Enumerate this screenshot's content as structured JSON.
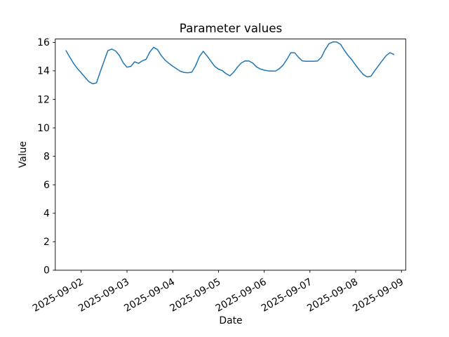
{
  "figure": {
    "background": "#ffffff",
    "text_color": "#000000",
    "axes_color": "#000000"
  },
  "chart_data": {
    "type": "line",
    "title": "Parameter values",
    "xlabel": "Date",
    "ylabel": "Value",
    "grid": false,
    "legend": null,
    "ylim": [
      0,
      16.24
    ],
    "yticks": [
      0,
      2,
      4,
      6,
      8,
      10,
      12,
      14,
      16
    ],
    "x_tick_labels": [
      "2025-09-02",
      "2025-09-03",
      "2025-09-04",
      "2025-09-05",
      "2025-09-06",
      "2025-09-07",
      "2025-09-08",
      "2025-09-09"
    ],
    "series": [
      {
        "color": "#1f77b4",
        "line_width": 1.5,
        "x": [
          "2025-09-01 16:00",
          "2025-09-01 18:00",
          "2025-09-01 20:00",
          "2025-09-01 22:00",
          "2025-09-02 00:00",
          "2025-09-02 02:00",
          "2025-09-02 04:00",
          "2025-09-02 06:00",
          "2025-09-02 08:00",
          "2025-09-02 10:00",
          "2025-09-02 12:00",
          "2025-09-02 14:00",
          "2025-09-02 16:00",
          "2025-09-02 18:00",
          "2025-09-02 20:00",
          "2025-09-02 22:00",
          "2025-09-03 00:00",
          "2025-09-03 02:00",
          "2025-09-03 04:00",
          "2025-09-03 06:00",
          "2025-09-03 08:00",
          "2025-09-03 10:00",
          "2025-09-03 12:00",
          "2025-09-03 14:00",
          "2025-09-03 16:00",
          "2025-09-03 18:00",
          "2025-09-03 20:00",
          "2025-09-03 22:00",
          "2025-09-04 00:00",
          "2025-09-04 02:00",
          "2025-09-04 04:00",
          "2025-09-04 06:00",
          "2025-09-04 08:00",
          "2025-09-04 10:00",
          "2025-09-04 12:00",
          "2025-09-04 14:00",
          "2025-09-04 16:00",
          "2025-09-04 18:00",
          "2025-09-04 20:00",
          "2025-09-04 22:00",
          "2025-09-05 00:00",
          "2025-09-05 02:00",
          "2025-09-05 04:00",
          "2025-09-05 06:00",
          "2025-09-05 08:00",
          "2025-09-05 10:00",
          "2025-09-05 12:00",
          "2025-09-05 14:00",
          "2025-09-05 16:00",
          "2025-09-05 18:00",
          "2025-09-05 20:00",
          "2025-09-05 22:00",
          "2025-09-06 00:00",
          "2025-09-06 02:00",
          "2025-09-06 04:00",
          "2025-09-06 06:00",
          "2025-09-06 08:00",
          "2025-09-06 10:00",
          "2025-09-06 12:00",
          "2025-09-06 14:00",
          "2025-09-06 16:00",
          "2025-09-06 18:00",
          "2025-09-06 20:00",
          "2025-09-06 22:00",
          "2025-09-07 00:00",
          "2025-09-07 02:00",
          "2025-09-07 04:00",
          "2025-09-07 06:00",
          "2025-09-07 08:00",
          "2025-09-07 10:00",
          "2025-09-07 12:00",
          "2025-09-07 14:00",
          "2025-09-07 16:00",
          "2025-09-07 18:00",
          "2025-09-07 20:00",
          "2025-09-07 22:00",
          "2025-09-08 00:00",
          "2025-09-08 02:00",
          "2025-09-08 04:00",
          "2025-09-08 06:00",
          "2025-09-08 08:00",
          "2025-09-08 10:00",
          "2025-09-08 12:00",
          "2025-09-08 14:00",
          "2025-09-08 16:00",
          "2025-09-08 18:00",
          "2025-09-08 20:00"
        ],
        "values": [
          15.42,
          14.96,
          14.52,
          14.16,
          13.86,
          13.55,
          13.24,
          13.09,
          13.16,
          13.95,
          14.69,
          15.42,
          15.53,
          15.4,
          15.08,
          14.57,
          14.26,
          14.31,
          14.64,
          14.53,
          14.7,
          14.81,
          15.33,
          15.66,
          15.49,
          15.07,
          14.75,
          14.53,
          14.32,
          14.15,
          13.97,
          13.89,
          13.87,
          13.91,
          14.36,
          15.0,
          15.37,
          15.05,
          14.68,
          14.32,
          14.12,
          14.02,
          13.8,
          13.65,
          13.91,
          14.27,
          14.56,
          14.7,
          14.69,
          14.55,
          14.28,
          14.13,
          14.05,
          14.0,
          13.98,
          13.99,
          14.16,
          14.42,
          14.83,
          15.28,
          15.27,
          14.95,
          14.7,
          14.67,
          14.67,
          14.67,
          14.69,
          14.96,
          15.49,
          15.91,
          16.03,
          16.03,
          15.87,
          15.45,
          15.08,
          14.77,
          14.4,
          14.05,
          13.74,
          13.58,
          13.62,
          14.01,
          14.37,
          14.73,
          15.07,
          15.28,
          15.15
        ]
      }
    ]
  }
}
